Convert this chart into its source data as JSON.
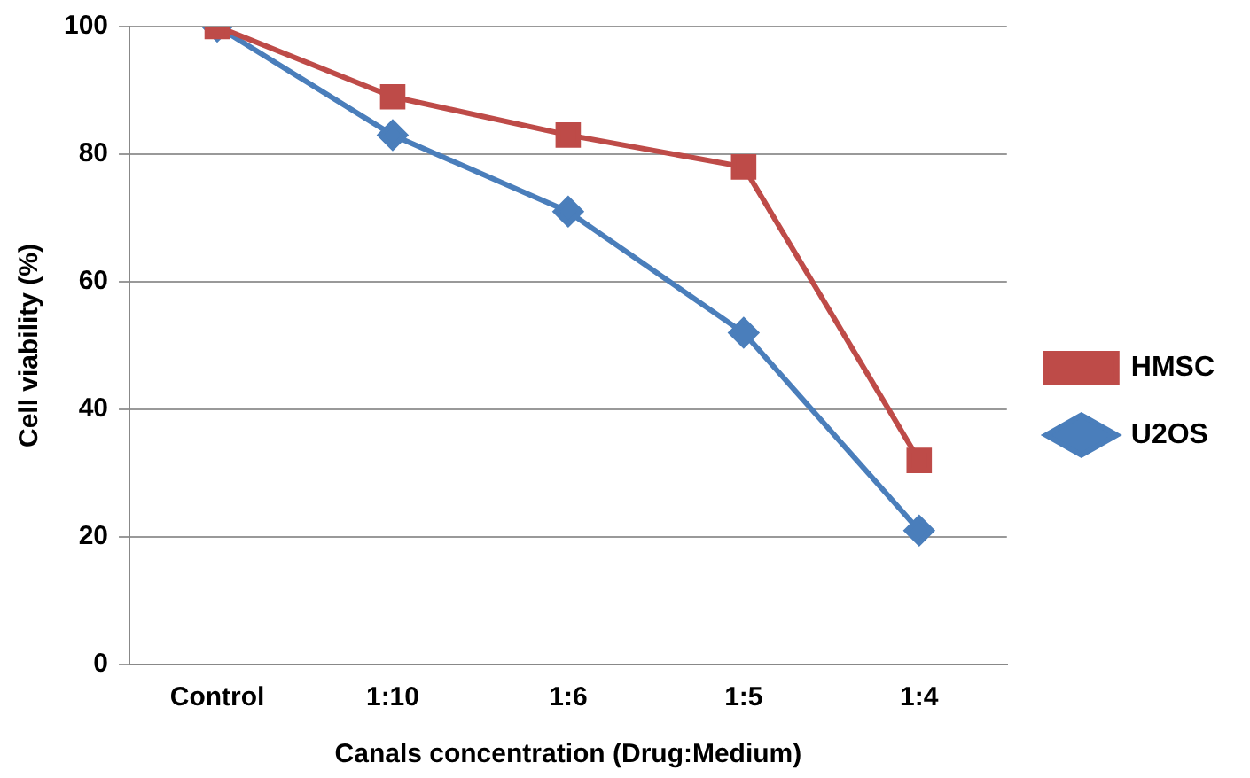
{
  "chart_data": {
    "type": "line",
    "xlabel": "Canals concentration (Drug:Medium)",
    "ylabel": "Cell viability (%)",
    "categories": [
      "Control",
      "1:10",
      "1:6",
      "1:5",
      "1:4"
    ],
    "series": [
      {
        "name": "U2OS",
        "color": "#4a7ebb",
        "marker": "diamond",
        "values": [
          100,
          83,
          71,
          52,
          21
        ]
      },
      {
        "name": "HMSC",
        "color": "#be4b48",
        "marker": "square",
        "values": [
          100,
          89,
          83,
          78,
          32
        ]
      }
    ],
    "ylim": [
      0,
      100
    ],
    "yticks": [
      0,
      20,
      40,
      60,
      80,
      100
    ],
    "grid": "y",
    "legend": "right"
  }
}
